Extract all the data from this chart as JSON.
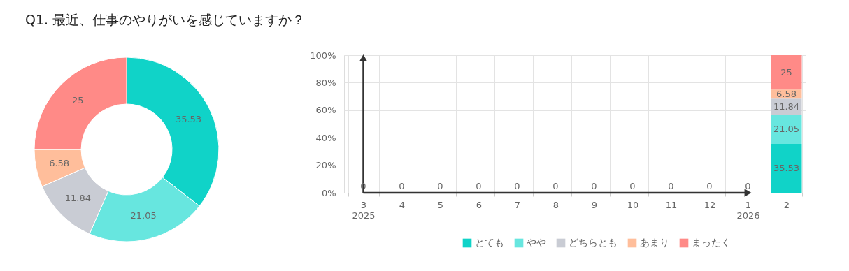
{
  "chart_data": [
    {
      "type": "donut",
      "title": "Q1. 最近、仕事のやりがいを感じていますか？",
      "categories": [
        "とても",
        "やや",
        "どちらとも",
        "あまり",
        "まったく"
      ],
      "values": [
        35.53,
        21.05,
        11.84,
        6.58,
        25
      ],
      "colors": [
        "#10d3c8",
        "#67e6df",
        "#c9ccd4",
        "#ffbe9b",
        "#ff8a87"
      ],
      "data_labels": true,
      "legend": "bottom"
    },
    {
      "type": "bar",
      "stacked": true,
      "categories": [
        "3\n2025",
        "4",
        "5",
        "6",
        "7",
        "8",
        "9",
        "10",
        "11",
        "12",
        "1\n2026",
        "2"
      ],
      "series": [
        {
          "color": "#10d3c8",
          "values": [
            0,
            0,
            0,
            0,
            0,
            0,
            0,
            0,
            0,
            0,
            0,
            35.53
          ],
          "value_labels": [
            "0",
            "0",
            "0",
            "0",
            "0",
            "0",
            "0",
            "0",
            "0",
            "0",
            "0",
            "35.53"
          ]
        },
        {
          "color": "#67e6df",
          "values": [
            0,
            0,
            0,
            0,
            0,
            0,
            0,
            0,
            0,
            0,
            0,
            21.05
          ],
          "value_labels": [
            null,
            null,
            null,
            null,
            null,
            null,
            null,
            null,
            null,
            null,
            null,
            "21.05"
          ]
        },
        {
          "color": "#c9ccd4",
          "values": [
            0,
            0,
            0,
            0,
            0,
            0,
            0,
            0,
            0,
            0,
            0,
            11.84
          ],
          "value_labels": [
            null,
            null,
            null,
            null,
            null,
            null,
            null,
            null,
            null,
            null,
            null,
            "11.84"
          ]
        },
        {
          "color": "#ffbe9b",
          "values": [
            0,
            0,
            0,
            0,
            0,
            0,
            0,
            0,
            0,
            0,
            0,
            6.58
          ],
          "value_labels": [
            null,
            null,
            null,
            null,
            null,
            null,
            null,
            null,
            null,
            null,
            null,
            "6.58"
          ]
        },
        {
          "color": "#ff8a87",
          "values": [
            0,
            0,
            0,
            0,
            0,
            0,
            0,
            0,
            0,
            0,
            0,
            25
          ],
          "value_labels": [
            null,
            null,
            null,
            null,
            null,
            null,
            null,
            null,
            null,
            null,
            null,
            "25"
          ]
        }
      ],
      "ylim": [
        0,
        100
      ],
      "yticks": [
        {
          "value": 0,
          "label": "0%"
        },
        {
          "value": 20,
          "label": "20%"
        },
        {
          "value": 40,
          "label": "40%"
        },
        {
          "value": 60,
          "label": "60%"
        },
        {
          "value": 80,
          "label": "80%"
        },
        {
          "value": 100,
          "label": "100%"
        }
      ],
      "ref_lines": [
        {
          "axis": "x",
          "value": "3\n2025",
          "color": "#333333",
          "line_style": "solid"
        },
        {
          "axis": "y",
          "value": 0,
          "color": "#333333",
          "line_style": "solid"
        }
      ],
      "grid": true
    }
  ]
}
